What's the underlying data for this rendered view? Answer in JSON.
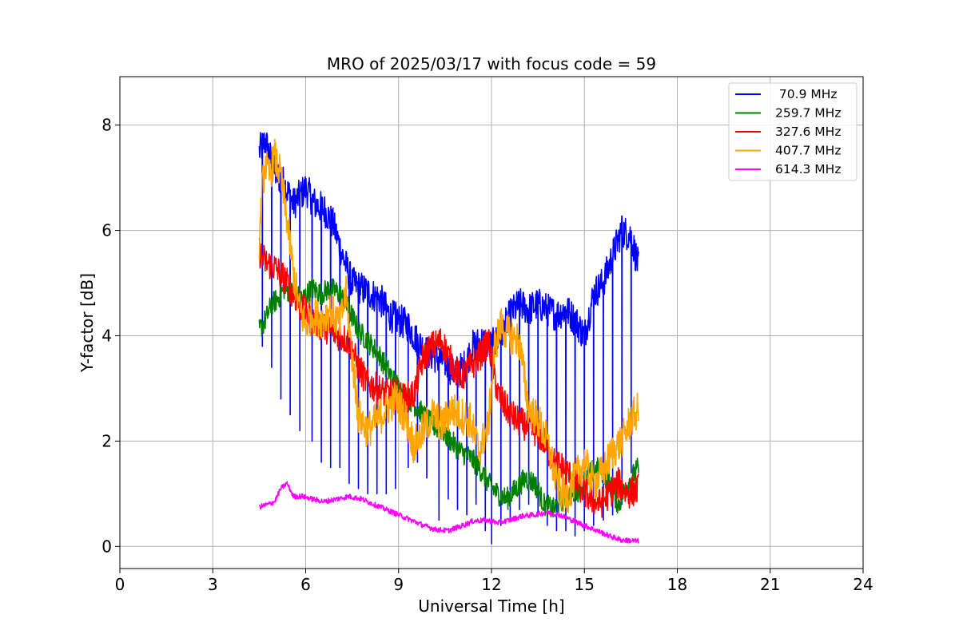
{
  "chart_data": {
    "type": "line",
    "title": "MRO of 2025/03/17 with focus code = 59",
    "xlabel": "Universal Time [h]",
    "ylabel": "Y-factor [dB]",
    "xlim": [
      0,
      24
    ],
    "ylim": [
      -0.42,
      8.92
    ],
    "xticks": [
      0,
      3,
      6,
      9,
      12,
      15,
      18,
      21,
      24
    ],
    "yticks": [
      0,
      2,
      4,
      6,
      8
    ],
    "grid": true,
    "legend_position": "top-right",
    "series": [
      {
        "name": " 70.9 MHz",
        "color": "#0000ff",
        "x": [
          4.5,
          4.7,
          5.0,
          5.3,
          5.6,
          6.0,
          6.3,
          6.6,
          6.9,
          7.2,
          7.5,
          7.8,
          8.1,
          8.4,
          8.7,
          9.0,
          9.3,
          9.6,
          9.9,
          10.2,
          10.5,
          10.8,
          11.1,
          11.4,
          11.7,
          12.0,
          12.3,
          12.6,
          12.9,
          13.2,
          13.5,
          13.8,
          14.1,
          14.4,
          14.7,
          15.0,
          15.3,
          15.6,
          15.9,
          16.2,
          16.5,
          16.75
        ],
        "y": [
          7.5,
          7.7,
          7.1,
          6.9,
          6.5,
          6.8,
          6.5,
          6.4,
          6.1,
          5.5,
          5.0,
          4.9,
          4.8,
          4.7,
          4.4,
          4.3,
          4.2,
          3.9,
          3.7,
          3.6,
          3.5,
          3.3,
          3.4,
          3.8,
          3.9,
          3.8,
          4.0,
          4.4,
          4.6,
          4.5,
          4.6,
          4.5,
          4.4,
          4.5,
          4.3,
          4.0,
          4.8,
          5.0,
          5.5,
          6.0,
          5.9,
          5.3
        ],
        "dips": [
          [
            4.6,
            3.8
          ],
          [
            4.9,
            3.4
          ],
          [
            5.2,
            2.8
          ],
          [
            5.5,
            2.5
          ],
          [
            5.8,
            2.2
          ],
          [
            6.2,
            2.0
          ],
          [
            6.5,
            1.6
          ],
          [
            6.8,
            1.5
          ],
          [
            7.1,
            1.5
          ],
          [
            7.4,
            1.2
          ],
          [
            7.7,
            1.1
          ],
          [
            8.0,
            1.0
          ],
          [
            8.3,
            1.0
          ],
          [
            8.6,
            1.0
          ],
          [
            8.9,
            1.1
          ],
          [
            9.3,
            1.5
          ],
          [
            9.6,
            1.6
          ],
          [
            9.9,
            1.3
          ],
          [
            10.3,
            0.5
          ],
          [
            10.6,
            0.9
          ],
          [
            10.9,
            0.7
          ],
          [
            11.2,
            0.6
          ],
          [
            11.5,
            0.8
          ],
          [
            11.8,
            0.3
          ],
          [
            12.0,
            0.05
          ],
          [
            12.3,
            0.4
          ],
          [
            12.6,
            0.5
          ],
          [
            12.9,
            0.7
          ],
          [
            13.2,
            0.8
          ],
          [
            13.5,
            0.6
          ],
          [
            13.8,
            0.4
          ],
          [
            14.1,
            0.3
          ],
          [
            14.4,
            0.3
          ],
          [
            14.7,
            0.2
          ],
          [
            15.0,
            0.3
          ],
          [
            15.3,
            0.4
          ],
          [
            15.6,
            0.5
          ],
          [
            15.9,
            0.6
          ],
          [
            16.2,
            0.8
          ],
          [
            16.5,
            1.4
          ]
        ]
      },
      {
        "name": "259.7 MHz",
        "color": "#008000",
        "x": [
          4.5,
          4.7,
          4.9,
          5.1,
          5.3,
          5.6,
          5.9,
          6.2,
          6.5,
          6.8,
          7.1,
          7.4,
          7.7,
          8.0,
          8.3,
          8.6,
          8.9,
          9.2,
          9.5,
          9.8,
          10.1,
          10.4,
          10.7,
          11.0,
          11.3,
          11.6,
          11.9,
          12.2,
          12.5,
          12.8,
          13.1,
          13.4,
          13.7,
          14.0,
          14.3,
          14.6,
          14.9,
          15.2,
          15.5,
          15.8,
          16.1,
          16.4,
          16.75
        ],
        "y": [
          4.1,
          4.3,
          4.6,
          4.7,
          4.9,
          4.8,
          4.7,
          4.9,
          4.8,
          4.9,
          4.8,
          4.5,
          4.1,
          3.9,
          3.7,
          3.4,
          3.1,
          2.9,
          2.7,
          2.5,
          2.3,
          2.2,
          2.0,
          1.8,
          1.7,
          1.5,
          1.2,
          1.0,
          0.9,
          1.1,
          1.3,
          1.2,
          0.8,
          0.7,
          0.9,
          1.0,
          1.1,
          1.4,
          1.5,
          1.2,
          0.8,
          1.2,
          1.5
        ],
        "dips": []
      },
      {
        "name": "327.6 MHz",
        "color": "#ff0000",
        "x": [
          4.5,
          4.7,
          5.0,
          5.3,
          5.6,
          5.9,
          6.2,
          6.5,
          6.8,
          7.1,
          7.4,
          7.7,
          8.0,
          8.3,
          8.6,
          8.9,
          9.2,
          9.5,
          9.8,
          10.1,
          10.4,
          10.7,
          11.0,
          11.3,
          11.6,
          11.9,
          12.2,
          12.5,
          12.8,
          13.1,
          13.4,
          13.7,
          14.0,
          14.3,
          14.6,
          14.9,
          15.2,
          15.5,
          15.8,
          16.1,
          16.4,
          16.75
        ],
        "y": [
          5.6,
          5.4,
          5.3,
          5.1,
          4.8,
          4.5,
          4.3,
          4.2,
          4.1,
          4.0,
          3.9,
          3.4,
          3.1,
          3.0,
          2.9,
          2.9,
          2.8,
          2.9,
          3.6,
          3.8,
          3.9,
          3.5,
          3.2,
          3.4,
          3.6,
          3.9,
          2.9,
          2.6,
          2.4,
          2.3,
          2.2,
          2.0,
          1.6,
          1.5,
          1.3,
          1.1,
          0.9,
          0.8,
          1.0,
          1.2,
          1.0,
          1.1
        ],
        "dips": []
      },
      {
        "name": "407.7 MHz",
        "color": "#ffa500",
        "x": [
          4.5,
          4.6,
          4.7,
          4.8,
          5.0,
          5.2,
          5.4,
          5.6,
          5.8,
          6.0,
          6.2,
          6.5,
          6.8,
          7.1,
          7.3,
          7.5,
          7.7,
          8.0,
          8.3,
          8.6,
          8.9,
          9.2,
          9.5,
          9.8,
          10.1,
          10.4,
          10.7,
          11.0,
          11.3,
          11.6,
          11.9,
          12.1,
          12.3,
          12.6,
          12.9,
          13.2,
          13.5,
          13.8,
          14.1,
          14.4,
          14.7,
          15.0,
          15.3,
          15.6,
          15.9,
          16.2,
          16.5,
          16.75
        ],
        "y": [
          5.8,
          6.8,
          7.3,
          7.0,
          7.4,
          7.0,
          6.2,
          5.2,
          4.5,
          4.2,
          4.4,
          4.3,
          4.5,
          4.2,
          4.8,
          3.6,
          2.5,
          2.2,
          2.4,
          2.6,
          2.8,
          2.5,
          1.9,
          2.2,
          2.5,
          2.3,
          2.6,
          2.5,
          2.4,
          1.8,
          2.3,
          3.8,
          4.2,
          4.0,
          3.9,
          2.6,
          2.4,
          2.0,
          1.2,
          0.9,
          1.3,
          1.6,
          1.2,
          1.4,
          1.8,
          2.0,
          2.4,
          2.6
        ],
        "dips": []
      },
      {
        "name": "614.3 MHz",
        "color": "#ff00ff",
        "x": [
          4.5,
          4.8,
          5.0,
          5.2,
          5.4,
          5.6,
          5.9,
          6.2,
          6.6,
          7.0,
          7.4,
          7.8,
          8.2,
          8.6,
          9.0,
          9.4,
          9.8,
          10.2,
          10.6,
          11.0,
          11.4,
          11.8,
          12.2,
          12.6,
          13.0,
          13.4,
          13.8,
          14.2,
          14.6,
          15.0,
          15.4,
          15.8,
          16.2,
          16.75
        ],
        "y": [
          0.75,
          0.8,
          0.85,
          1.1,
          1.2,
          0.95,
          0.95,
          0.9,
          0.85,
          0.9,
          0.95,
          0.9,
          0.8,
          0.7,
          0.6,
          0.5,
          0.4,
          0.32,
          0.3,
          0.38,
          0.48,
          0.5,
          0.45,
          0.5,
          0.58,
          0.6,
          0.65,
          0.6,
          0.5,
          0.4,
          0.3,
          0.2,
          0.12,
          0.1
        ],
        "dips": []
      }
    ]
  }
}
